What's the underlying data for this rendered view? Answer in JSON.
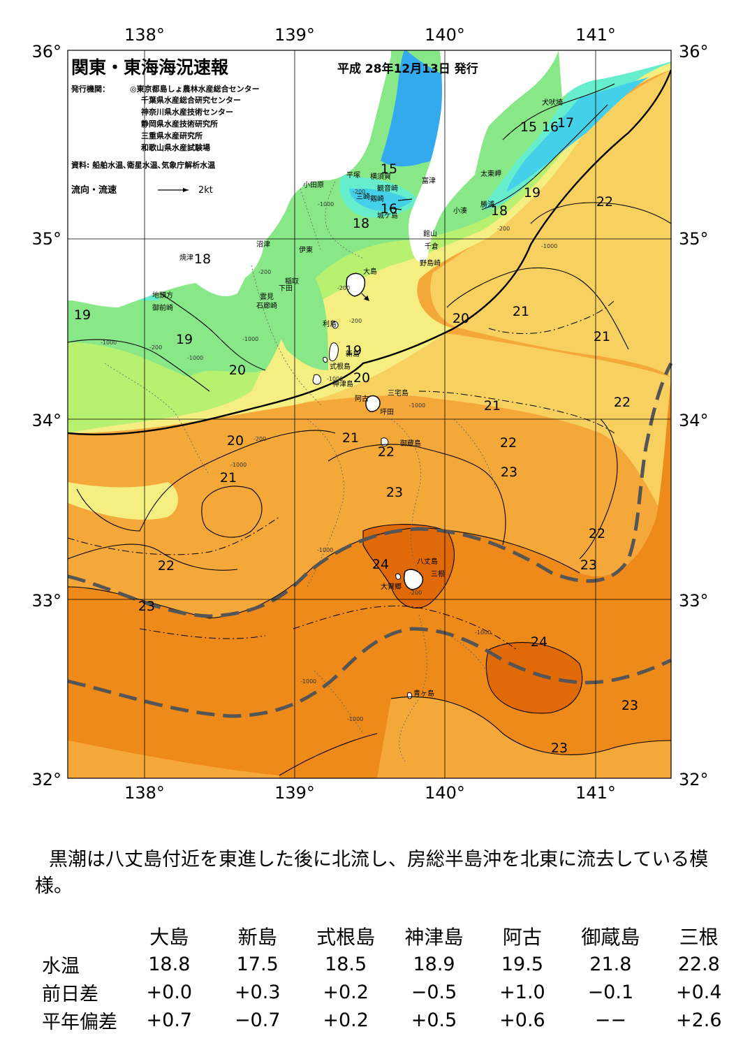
{
  "title": "関東・東海海況速報",
  "issue_date": "平成 28年12月13日 発行",
  "issuers_label": "発行機関：",
  "issuers": [
    "◎東京都島しょ農林水産総合センター",
    "千葉県水産総合研究センター",
    "神奈川県水産技術センター",
    "静岡県水産技術研究所",
    "三重県水産研究所",
    "和歌山県水産試験場"
  ],
  "sources": "資料: 船舶水温､衛星水温､気象庁解析水温",
  "flow_legend": {
    "label": "流向・流速",
    "scale": "2kt"
  },
  "lon_labels": [
    "138°",
    "139°",
    "140°",
    "141°"
  ],
  "lat_labels": [
    "36°",
    "35°",
    "34°",
    "33°",
    "32°"
  ],
  "isotherm_labels": [
    "15",
    "16",
    "17",
    "15",
    "16",
    "18",
    "19",
    "22",
    "18",
    "18",
    "19",
    "19",
    "20",
    "21",
    "19",
    "20",
    "20",
    "21",
    "21",
    "22",
    "21",
    "22",
    "22",
    "23",
    "22",
    "23",
    "24",
    "22",
    "23",
    "23",
    "24",
    "23",
    "23"
  ],
  "place_names": [
    "犬吠埼",
    "太東岬",
    "勝浦",
    "小湊",
    "富津",
    "横須賀",
    "観音崎",
    "剱崎",
    "三崎",
    "城ケ島",
    "平塚",
    "小田原",
    "館山",
    "千倉",
    "野島崎",
    "沼津",
    "伊東",
    "焼津",
    "稲取",
    "下田",
    "雲見",
    "石廊崎",
    "地頭方",
    "御前崎",
    "大島",
    "利島",
    "新島",
    "式根島",
    "神津島",
    "三宅島",
    "阿古",
    "坪田",
    "御蔵島",
    "八丈島",
    "三根",
    "大賀郷",
    "青ヶ島"
  ],
  "depth_labels": [
    "-200",
    "-1000",
    "-200",
    "-1000",
    "-200",
    "-1000",
    "-200",
    "-1000",
    "-1000",
    "-200",
    "-200",
    "-1000",
    "-1000",
    "-200",
    "-1000",
    "-1000",
    "-1000",
    "-200",
    "-1000",
    "-1000"
  ],
  "summary": "黒潮は八丈島付近を東進した後に北流し、房総半島沖を北東に流去している模様。",
  "table": {
    "columns": [
      "大島",
      "新島",
      "式根島",
      "神津島",
      "阿古",
      "御蔵島",
      "三根"
    ],
    "rows": [
      {
        "label": "水温",
        "values": [
          "18.8",
          "17.5",
          "18.5",
          "18.9",
          "19.5",
          "21.8",
          "22.8"
        ]
      },
      {
        "label": "前日差",
        "values": [
          "+0.0",
          "+0.3",
          "+0.2",
          "−0.5",
          "+1.0",
          "−0.1",
          "+0.4"
        ]
      },
      {
        "label": "平年偏差",
        "values": [
          "+0.7",
          "−0.7",
          "+0.2",
          "+0.5",
          "+0.6",
          "−−",
          "+2.6"
        ]
      }
    ]
  },
  "colors": {
    "sst_15_16": "#33aaee",
    "sst_16_17": "#44d0e8",
    "sst_17_18": "#66eecc",
    "sst_18_19": "#88e888",
    "sst_19_20": "#b8f070",
    "sst_20_21": "#f5ee80",
    "sst_21_22": "#f8d060",
    "sst_22_23": "#f5a83a",
    "sst_23_24": "#ee8a1a",
    "sst_24": "#e06a08",
    "land": "#ffffff",
    "kuroshio_axis": "#555555"
  }
}
